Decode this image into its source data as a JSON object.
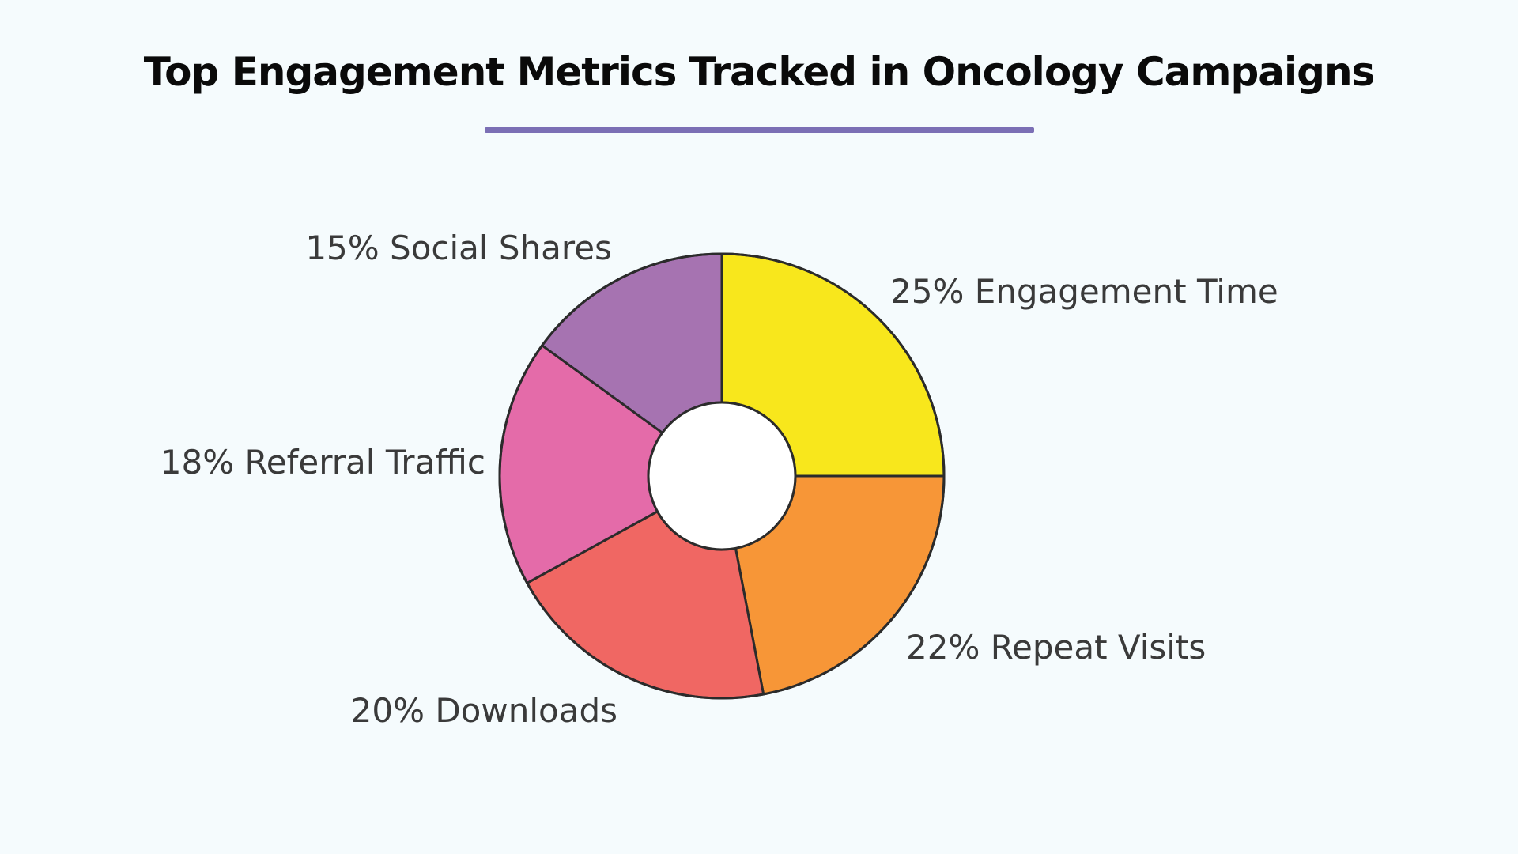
{
  "title": "Top Engagement Metrics Tracked in Oncology Campaigns",
  "accent_color": "#7b6fb5",
  "chart_data": {
    "type": "pie",
    "donut": true,
    "title": "Top Engagement Metrics Tracked in Oncology Campaigns",
    "slices": [
      {
        "label": "Engagement Time",
        "value": 25,
        "display": "25% Engagement Time",
        "color": "#f8e71c"
      },
      {
        "label": "Repeat Visits",
        "value": 22,
        "display": "22% Repeat Visits",
        "color": "#f79637"
      },
      {
        "label": "Downloads",
        "value": 20,
        "display": "20% Downloads",
        "color": "#f06763"
      },
      {
        "label": "Referral Traffic",
        "value": 18,
        "display": "18% Referral Traffic",
        "color": "#e46ba9"
      },
      {
        "label": "Social Shares",
        "value": 15,
        "display": "15% Social Shares",
        "color": "#a673b1"
      }
    ],
    "start_angle": "12 o'clock",
    "direction": "clockwise",
    "legend": "none"
  }
}
